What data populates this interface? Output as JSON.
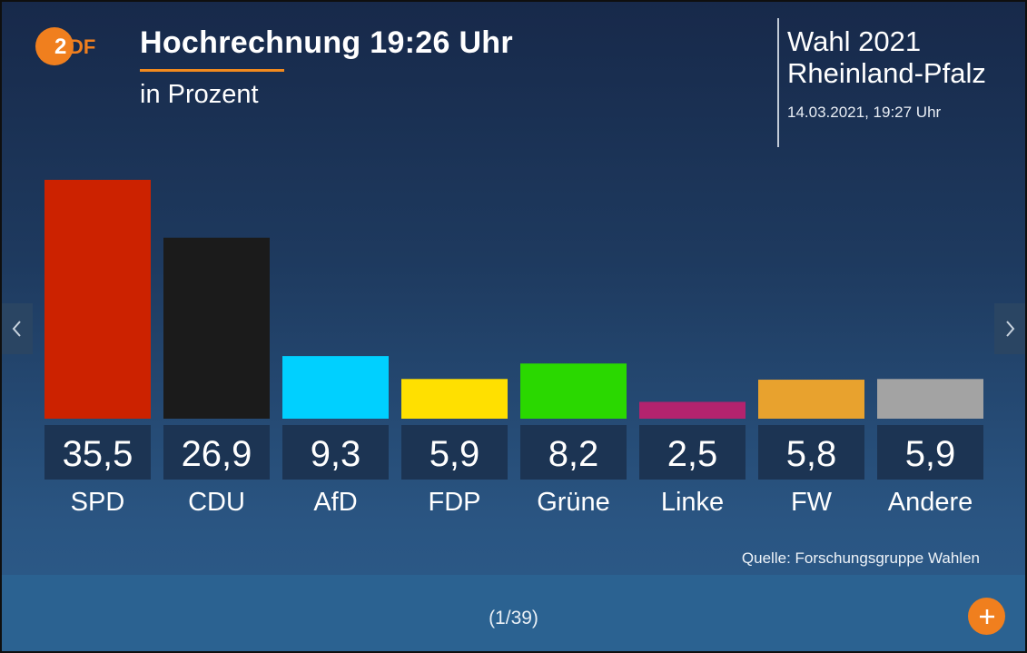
{
  "header": {
    "logo_text": "ZDF",
    "title": "Hochrechnung 19:26 Uhr",
    "subtitle": "in Prozent",
    "election_line1": "Wahl 2021",
    "election_line2": "Rheinland-Pfalz",
    "timestamp": "14.03.2021, 19:27 Uhr"
  },
  "chart_data": {
    "type": "bar",
    "title": "Hochrechnung 19:26 Uhr",
    "ylabel": "in Prozent",
    "xlabel": "",
    "categories": [
      "SPD",
      "CDU",
      "AfD",
      "FDP",
      "Grüne",
      "Linke",
      "FW",
      "Andere"
    ],
    "values": [
      35.5,
      26.9,
      9.3,
      5.9,
      8.2,
      2.5,
      5.8,
      5.9
    ],
    "value_labels": [
      "35,5",
      "26,9",
      "9,3",
      "5,9",
      "8,2",
      "2,5",
      "5,8",
      "5,9"
    ],
    "colors": [
      "#cc2200",
      "#1b1b1b",
      "#00d0ff",
      "#ffe000",
      "#2ad800",
      "#b3236e",
      "#e8a22e",
      "#a3a3a3"
    ],
    "ylim": [
      0,
      35.5
    ],
    "grid": false,
    "legend": "none"
  },
  "footer": {
    "source": "Quelle: Forschungsgruppe Wahlen",
    "page_indicator": "(1/39)"
  },
  "icons": {
    "prev": "chevron-left-icon",
    "next": "chevron-right-icon",
    "more": "plus-icon",
    "logo": "zdf-logo"
  },
  "theme": {
    "accent": "#f28a1e",
    "value_box": "#1c3453"
  }
}
